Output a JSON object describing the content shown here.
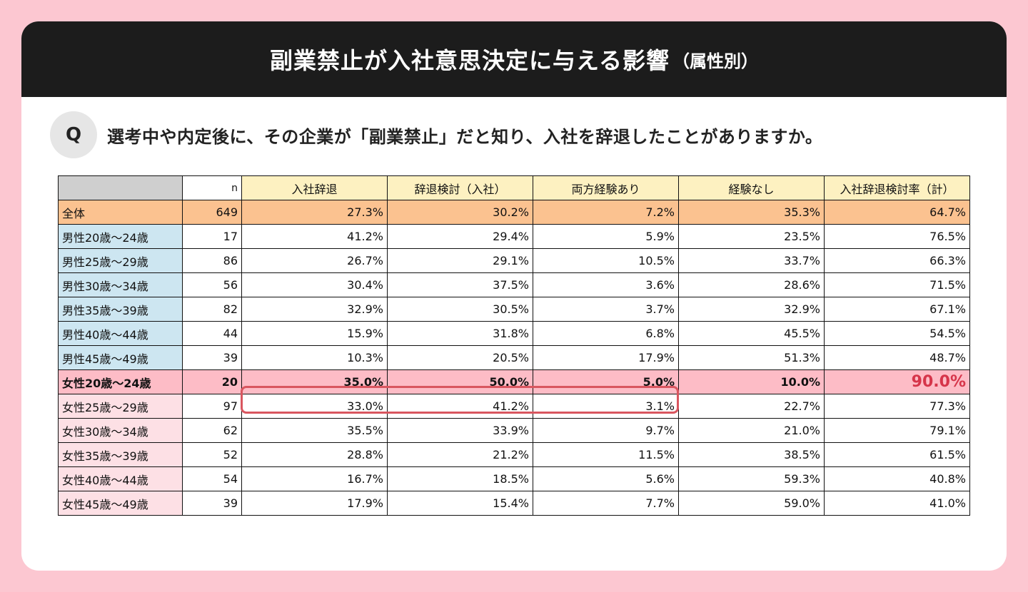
{
  "header": {
    "title": "副業禁止が入社意思決定に与える影響",
    "title_sub": "（属性別）"
  },
  "question": {
    "badge": "Q",
    "text": "選考中や内定後に、その企業が「副業禁止」だと知り、入社を辞退したことがありますか。"
  },
  "colors": {
    "background": "#fcc7d1",
    "header_bg": "#1c1c1c",
    "overall_row": "#fbc290",
    "male_label": "#cde6f1",
    "female_label": "#fde0e5",
    "highlight_row": "#fdbcc6",
    "highlight_accent": "#d6354a",
    "column_header": "#fdf1c1"
  },
  "chart_data": {
    "type": "table",
    "columns": [
      "",
      "n",
      "入社辞退",
      "辞退検討（入社）",
      "両方経験あり",
      "経験なし",
      "入社辞退検討率（計）"
    ],
    "rows": [
      {
        "label": "全体",
        "group": "overall",
        "n": "649",
        "values": [
          "27.3%",
          "30.2%",
          "7.2%",
          "35.3%",
          "64.7%"
        ]
      },
      {
        "label": "男性20歳～24歳",
        "group": "male",
        "n": "17",
        "values": [
          "41.2%",
          "29.4%",
          "5.9%",
          "23.5%",
          "76.5%"
        ]
      },
      {
        "label": "男性25歳～29歳",
        "group": "male",
        "n": "86",
        "values": [
          "26.7%",
          "29.1%",
          "10.5%",
          "33.7%",
          "66.3%"
        ]
      },
      {
        "label": "男性30歳～34歳",
        "group": "male",
        "n": "56",
        "values": [
          "30.4%",
          "37.5%",
          "3.6%",
          "28.6%",
          "71.5%"
        ]
      },
      {
        "label": "男性35歳～39歳",
        "group": "male",
        "n": "82",
        "values": [
          "32.9%",
          "30.5%",
          "3.7%",
          "32.9%",
          "67.1%"
        ]
      },
      {
        "label": "男性40歳～44歳",
        "group": "male",
        "n": "44",
        "values": [
          "15.9%",
          "31.8%",
          "6.8%",
          "45.5%",
          "54.5%"
        ]
      },
      {
        "label": "男性45歳～49歳",
        "group": "male",
        "n": "39",
        "values": [
          "10.3%",
          "20.5%",
          "17.9%",
          "51.3%",
          "48.7%"
        ]
      },
      {
        "label": "女性20歳～24歳",
        "group": "highlight",
        "n": "20",
        "values": [
          "35.0%",
          "50.0%",
          "5.0%",
          "10.0%",
          "90.0%"
        ]
      },
      {
        "label": "女性25歳～29歳",
        "group": "female",
        "n": "97",
        "values": [
          "33.0%",
          "41.2%",
          "3.1%",
          "22.7%",
          "77.3%"
        ]
      },
      {
        "label": "女性30歳～34歳",
        "group": "female",
        "n": "62",
        "values": [
          "35.5%",
          "33.9%",
          "9.7%",
          "21.0%",
          "79.1%"
        ]
      },
      {
        "label": "女性35歳～39歳",
        "group": "female",
        "n": "52",
        "values": [
          "28.8%",
          "21.2%",
          "11.5%",
          "38.5%",
          "61.5%"
        ]
      },
      {
        "label": "女性40歳～44歳",
        "group": "female",
        "n": "54",
        "values": [
          "16.7%",
          "18.5%",
          "5.6%",
          "59.3%",
          "40.8%"
        ]
      },
      {
        "label": "女性45歳～49歳",
        "group": "female",
        "n": "39",
        "values": [
          "17.9%",
          "15.4%",
          "7.7%",
          "59.0%",
          "41.0%"
        ]
      }
    ]
  }
}
